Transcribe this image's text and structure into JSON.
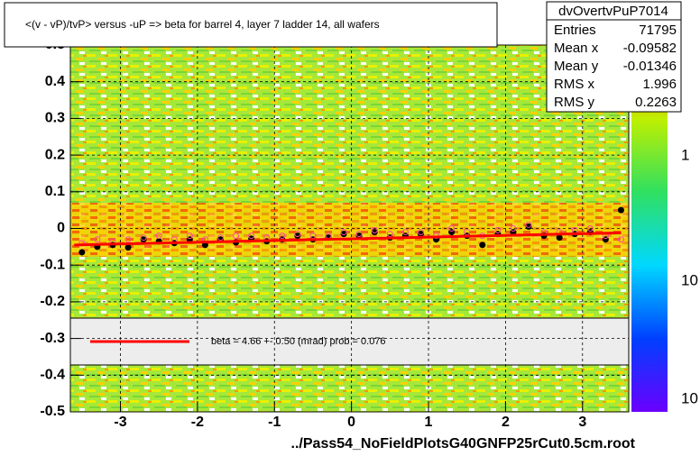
{
  "chart_data": {
    "type": "scatter",
    "title": "<(v - vP)/tvP> versus  -uP => beta for barrel 4, layer 7 ladder 14, all wafers",
    "x_label": "../Pass54_NoFieldPlotsG40GNFP25rCut0.5cm.root",
    "xlim": [
      -3.65,
      3.6
    ],
    "ylim": [
      -0.5,
      0.5
    ],
    "xticks": [
      -3,
      -2,
      -1,
      0,
      1,
      2,
      3
    ],
    "yticks": [
      -0.5,
      -0.4,
      -0.3,
      -0.2,
      -0.1,
      0,
      0.1,
      0.2,
      0.3,
      0.4,
      0.5
    ],
    "grid": true,
    "x": [
      -3.5,
      -3.3,
      -3.1,
      -2.9,
      -2.7,
      -2.5,
      -2.3,
      -2.1,
      -1.9,
      -1.7,
      -1.5,
      -1.3,
      -1.1,
      -0.9,
      -0.7,
      -0.5,
      -0.3,
      -0.1,
      0.1,
      0.3,
      0.5,
      0.7,
      0.9,
      1.1,
      1.3,
      1.5,
      1.7,
      1.9,
      2.1,
      2.3,
      2.5,
      2.7,
      2.9,
      3.1,
      3.3,
      3.5
    ],
    "series": [
      {
        "color": "#000000",
        "values": [
          -0.065,
          -0.05,
          -0.045,
          -0.052,
          -0.03,
          -0.035,
          -0.04,
          -0.03,
          -0.045,
          -0.03,
          -0.038,
          -0.028,
          -0.035,
          -0.03,
          -0.02,
          -0.03,
          -0.025,
          -0.015,
          -0.02,
          -0.01,
          -0.025,
          -0.02,
          -0.015,
          -0.03,
          -0.01,
          -0.02,
          -0.045,
          -0.015,
          -0.01,
          0.005,
          -0.02,
          -0.025,
          -0.015,
          -0.01,
          -0.03,
          0.05
        ]
      },
      {
        "color": "#ff44aa",
        "values": [
          -0.04,
          -0.03,
          -0.035,
          -0.03,
          -0.025,
          -0.02,
          -0.03,
          -0.02,
          -0.03,
          -0.025,
          -0.02,
          -0.02,
          -0.025,
          -0.02,
          -0.015,
          -0.02,
          -0.02,
          -0.01,
          -0.015,
          -0.005,
          -0.015,
          -0.01,
          -0.01,
          -0.02,
          0.0,
          -0.01,
          -0.02,
          -0.005,
          0.0,
          0.01,
          -0.01,
          -0.01,
          -0.005,
          0.0,
          -0.02,
          -0.03
        ]
      }
    ],
    "fit": {
      "color": "#ff0000",
      "x": [
        -3.6,
        3.5
      ],
      "values": [
        -0.045,
        -0.012
      ]
    },
    "legend_text": "beta =    4.66 +-  0.50 (mrad) prob = 0.076",
    "z_labels": [
      "1",
      "10",
      "10"
    ],
    "stats": {
      "title": "dvOvertvPuP7014",
      "rows": [
        [
          "Entries",
          "71795"
        ],
        [
          "Mean x",
          "-0.09582"
        ],
        [
          "Mean y",
          "-0.01346"
        ],
        [
          "RMS x",
          "1.996"
        ],
        [
          "RMS y",
          "0.2263"
        ]
      ]
    }
  }
}
